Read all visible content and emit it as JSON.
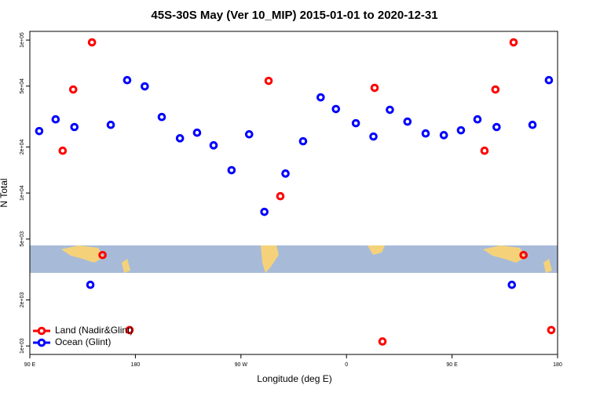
{
  "chart_data": {
    "type": "scatter",
    "title": "45S-30S May (Ver 10_MIP)   2015-01-01 to 2020-12-31",
    "xlabel": "Longitude (deg E)",
    "ylabel": "N Total",
    "xlim": [
      90,
      540
    ],
    "xticks": [
      {
        "value": 90,
        "label": "90 E"
      },
      {
        "value": 180,
        "label": "180"
      },
      {
        "value": 270,
        "label": "90 W"
      },
      {
        "value": 360,
        "label": "0"
      },
      {
        "value": 450,
        "label": "90 E"
      },
      {
        "value": 540,
        "label": "180"
      }
    ],
    "ylim": [
      880,
      114000
    ],
    "ylog": true,
    "yticks": [
      {
        "value": 1000,
        "label": "1e+03"
      },
      {
        "value": 2000,
        "label": "2e+03"
      },
      {
        "value": 5000,
        "label": "5e+03"
      },
      {
        "value": 10000,
        "label": "1e+04"
      },
      {
        "value": 20000,
        "label": "2e+04"
      },
      {
        "value": 50000,
        "label": "5e+04"
      },
      {
        "value": 100000,
        "label": "1e+05"
      }
    ],
    "legend": "bottomleft",
    "series": [
      {
        "name": "Land (Nadir&Glint)",
        "color": "#ff0000",
        "x": [
          118,
          127,
          143,
          152,
          175,
          293.6,
          303.6,
          384,
          390.7,
          477.7,
          487,
          502.5,
          511,
          534.6
        ],
        "values": [
          18900,
          47500,
          96600,
          3930,
          1270,
          54100,
          9530,
          48700,
          1070,
          18900,
          47500,
          96600,
          3930,
          1270
        ]
      },
      {
        "name": "Ocean (Glint)",
        "color": "#0000ff",
        "x": [
          98,
          112,
          128,
          141.6,
          159,
          173,
          188,
          202.5,
          218,
          232.6,
          246.7,
          262,
          277,
          290,
          308,
          323,
          338,
          351,
          368,
          383,
          397,
          412,
          427.5,
          443,
          457.6,
          471.7,
          488,
          501,
          518.6,
          532.6
        ],
        "values": [
          25400,
          30300,
          27000,
          2510,
          27900,
          54700,
          49800,
          31400,
          22800,
          24800,
          20500,
          14100,
          24200,
          7530,
          13400,
          21800,
          42200,
          35400,
          28600,
          23400,
          35000,
          29300,
          24500,
          23900,
          25700,
          30300,
          27000,
          2510,
          27900,
          54700
        ]
      }
    ]
  }
}
